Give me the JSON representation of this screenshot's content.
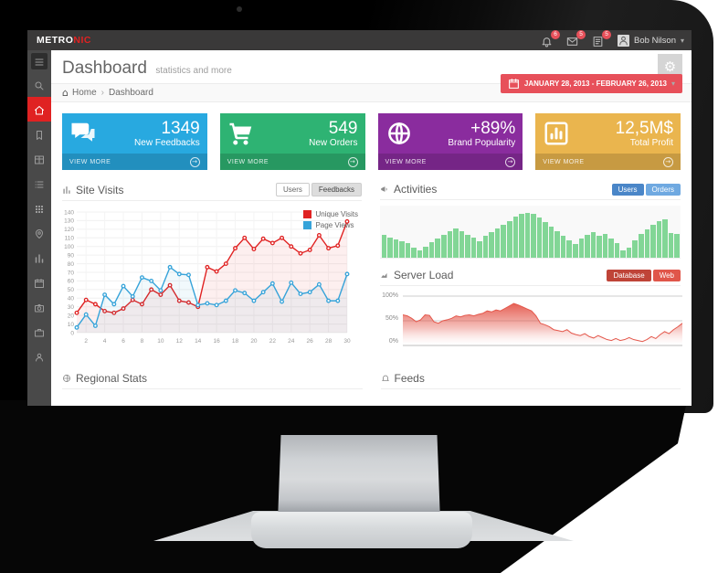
{
  "brand": {
    "text_primary": "METRO",
    "text_secondary": "NIC"
  },
  "topbar": {
    "notifications": [
      {
        "icon": "bell-icon",
        "badge": "6"
      },
      {
        "icon": "envelope-icon",
        "badge": "5"
      },
      {
        "icon": "tasks-icon",
        "badge": "5"
      }
    ],
    "user": {
      "name": "Bob Nilson"
    }
  },
  "sidebar": {
    "items": [
      {
        "icon": "menu-icon",
        "name": "menu-toggle",
        "active": false
      },
      {
        "icon": "search-icon",
        "name": "search",
        "active": false
      },
      {
        "icon": "home-icon",
        "name": "home",
        "active": true
      },
      {
        "icon": "bookmark-icon",
        "name": "bookmarks",
        "active": false
      },
      {
        "icon": "table-icon",
        "name": "tables",
        "active": false
      },
      {
        "icon": "list-icon",
        "name": "lists",
        "active": false
      },
      {
        "icon": "grid-icon",
        "name": "components",
        "active": false
      },
      {
        "icon": "pin-icon",
        "name": "maps",
        "active": false
      },
      {
        "icon": "chart-icon",
        "name": "charts",
        "active": false
      },
      {
        "icon": "calendar-icon",
        "name": "calendar",
        "active": false
      },
      {
        "icon": "camera-icon",
        "name": "gallery",
        "active": false
      },
      {
        "icon": "briefcase-icon",
        "name": "portfolio",
        "active": false
      },
      {
        "icon": "user-icon",
        "name": "profile",
        "active": false
      }
    ]
  },
  "page": {
    "title": "Dashboard",
    "subtitle": "statistics and more",
    "breadcrumb": {
      "home": "Home",
      "current": "Dashboard"
    },
    "date_range": "JANUARY 28, 2013 - FEBRUARY 26, 2013"
  },
  "stats": [
    {
      "value": "1349",
      "label": "New Feedbacks",
      "action": "VIEW MORE",
      "color": "#28a9e0",
      "icon": "comments-icon"
    },
    {
      "value": "549",
      "label": "New Orders",
      "action": "VIEW MORE",
      "color": "#2eb373",
      "icon": "cart-icon"
    },
    {
      "value": "+89%",
      "label": "Brand Popularity",
      "action": "VIEW MORE",
      "color": "#8a2c9e",
      "icon": "globe-icon"
    },
    {
      "value": "12,5M$",
      "label": "Total Profit",
      "action": "VIEW MORE",
      "color": "#eab54e",
      "icon": "bars-icon"
    }
  ],
  "site_visits": {
    "title": "Site Visits",
    "tabs": [
      {
        "label": "Users",
        "active": false
      },
      {
        "label": "Feedbacks",
        "active": true
      }
    ]
  },
  "activities": {
    "title": "Activities",
    "buttons": [
      {
        "label": "Users",
        "color": "#4a86c8"
      },
      {
        "label": "Orders",
        "color": "#6fa9e1"
      }
    ]
  },
  "server_load": {
    "title": "Server Load",
    "buttons": [
      {
        "label": "Database",
        "color": "#bf4438"
      },
      {
        "label": "Web",
        "color": "#e0564a"
      }
    ]
  },
  "regional_stats": {
    "title": "Regional Stats"
  },
  "feeds": {
    "title": "Feeds"
  },
  "chart_data": [
    {
      "type": "line",
      "title": "Site Visits",
      "xticks": [
        2,
        4,
        6,
        8,
        10,
        12,
        14,
        16,
        18,
        20,
        22,
        24,
        26,
        28,
        30
      ],
      "ylim": [
        0,
        140
      ],
      "yticks": [
        0,
        10,
        20,
        30,
        40,
        50,
        60,
        70,
        80,
        90,
        100,
        110,
        120,
        130,
        140
      ],
      "grid": true,
      "legend_position": "top-right",
      "series": [
        {
          "name": "Unique Visits",
          "color": "#e02222",
          "values": [
            23,
            38,
            33,
            25,
            23,
            28,
            38,
            33,
            50,
            44,
            55,
            37,
            35,
            30,
            76,
            71,
            80,
            98,
            110,
            97,
            109,
            104,
            110,
            100,
            92,
            96,
            113,
            98,
            101,
            129
          ]
        },
        {
          "name": "Page Views",
          "color": "#36a3d9",
          "values": [
            6,
            21,
            8,
            44,
            33,
            54,
            42,
            64,
            60,
            49,
            76,
            68,
            67,
            32,
            34,
            32,
            37,
            49,
            46,
            37,
            47,
            57,
            36,
            58,
            45,
            47,
            56,
            37,
            37,
            68
          ]
        }
      ]
    },
    {
      "type": "bar",
      "title": "Activities",
      "color": "#82d696",
      "ylim": [
        0,
        100
      ],
      "values": [
        44,
        40,
        36,
        33,
        28,
        20,
        14,
        22,
        30,
        38,
        45,
        52,
        57,
        51,
        45,
        39,
        33,
        42,
        50,
        57,
        64,
        72,
        80,
        85,
        87,
        85,
        79,
        70,
        61,
        52,
        43,
        34,
        27,
        37,
        45,
        50,
        42,
        46,
        38,
        29,
        14,
        20,
        34,
        46,
        56,
        64,
        72,
        75,
        48,
        46
      ]
    },
    {
      "type": "area",
      "title": "Server Load",
      "color": "#e4584c",
      "ylim": [
        0,
        100
      ],
      "yticks": [
        "100%",
        "50%",
        "0%"
      ],
      "values": [
        62,
        60,
        55,
        48,
        52,
        62,
        61,
        48,
        45,
        50,
        52,
        55,
        60,
        58,
        61,
        62,
        60,
        63,
        65,
        70,
        68,
        72,
        70,
        75,
        80,
        85,
        82,
        78,
        74,
        70,
        60,
        45,
        42,
        38,
        32,
        30,
        28,
        32,
        25,
        22,
        20,
        24,
        18,
        15,
        20,
        16,
        12,
        10,
        14,
        10,
        12,
        16,
        12,
        10,
        8,
        12,
        18,
        14,
        22,
        28,
        24,
        32,
        38,
        45
      ]
    }
  ]
}
